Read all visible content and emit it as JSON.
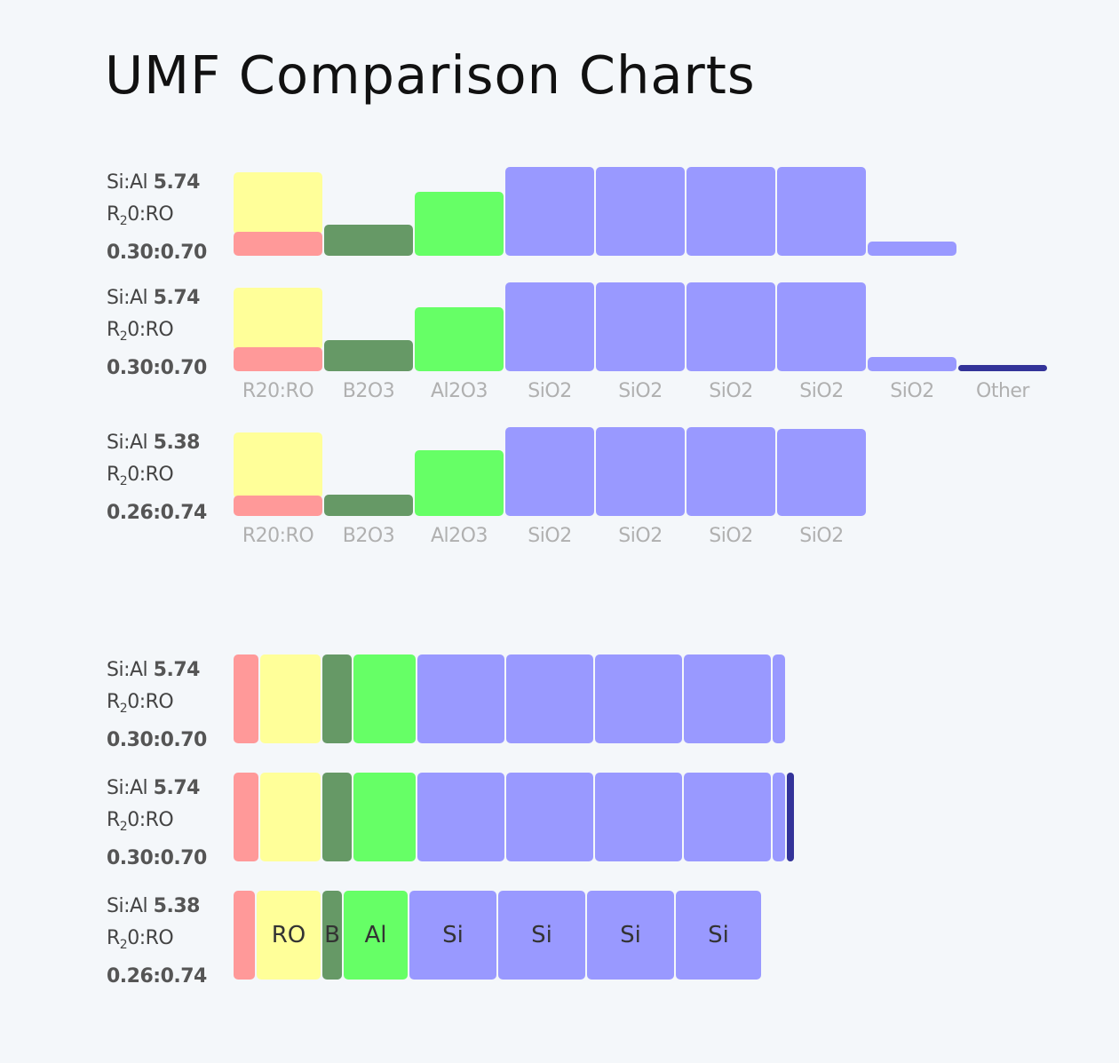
{
  "page_title": "UMF Comparison Charts",
  "colors": {
    "R2O": "#ff9999",
    "RO": "#ffff99",
    "B2O3": "#669966",
    "Al2O3": "#66ff66",
    "SiO2": "#9999ff",
    "Other": "#333399"
  },
  "chart_data": [
    {
      "type": "bar",
      "layout": "vertical-columns",
      "categories": [
        "R20:RO",
        "B2O3",
        "Al2O3",
        "SiO2",
        "SiO2",
        "SiO2",
        "SiO2",
        "SiO2",
        "Other"
      ],
      "ylim": [
        0,
        1
      ],
      "rows": [
        {
          "si_al_label": "Si:Al",
          "si_al": "5.74",
          "ratio_label": "R",
          "ratio_sub": "2",
          "ratio_label_rest": "0:RO",
          "ratio": "0.30:0.70",
          "R2O": 0.3,
          "RO": 0.7,
          "B2O3": 0.35,
          "Al2O3": 0.72,
          "SiO2": 4.16,
          "Other": 0
        },
        {
          "si_al_label": "Si:Al",
          "si_al": "5.74",
          "ratio_label": "R",
          "ratio_sub": "2",
          "ratio_label_rest": "0:RO",
          "ratio": "0.30:0.70",
          "R2O": 0.3,
          "RO": 0.7,
          "B2O3": 0.35,
          "Al2O3": 0.72,
          "SiO2": 4.16,
          "Other": 0.07
        },
        {
          "si_al_label": "Si:Al",
          "si_al": "5.38",
          "ratio_label": "R",
          "ratio_sub": "2",
          "ratio_label_rest": "0:RO",
          "ratio": "0.26:0.74",
          "R2O": 0.26,
          "RO": 0.74,
          "B2O3": 0.24,
          "Al2O3": 0.74,
          "SiO2": 3.98,
          "Other": 0
        }
      ]
    },
    {
      "type": "bar",
      "layout": "stacked-horizontal",
      "segment_labels": {
        "RO": "RO",
        "B2O3": "B",
        "Al2O3": "Al",
        "SiO2": "Si"
      },
      "rows": [
        {
          "si_al_label": "Si:Al",
          "si_al": "5.74",
          "ratio_label": "R",
          "ratio_sub": "2",
          "ratio_label_rest": "0:RO",
          "ratio": "0.30:0.70",
          "R2O": 0.3,
          "RO": 0.7,
          "B2O3": 0.35,
          "Al2O3": 0.72,
          "SiO2": 4.16,
          "Other": 0,
          "show_labels": false
        },
        {
          "si_al_label": "Si:Al",
          "si_al": "5.74",
          "ratio_label": "R",
          "ratio_sub": "2",
          "ratio_label_rest": "0:RO",
          "ratio": "0.30:0.70",
          "R2O": 0.3,
          "RO": 0.7,
          "B2O3": 0.35,
          "Al2O3": 0.72,
          "SiO2": 4.16,
          "Other": 0.07,
          "show_labels": false
        },
        {
          "si_al_label": "Si:Al",
          "si_al": "5.38",
          "ratio_label": "R",
          "ratio_sub": "2",
          "ratio_label_rest": "0:RO",
          "ratio": "0.26:0.74",
          "R2O": 0.26,
          "RO": 0.74,
          "B2O3": 0.24,
          "Al2O3": 0.74,
          "SiO2": 3.98,
          "Other": 0,
          "show_labels": true
        }
      ]
    }
  ]
}
